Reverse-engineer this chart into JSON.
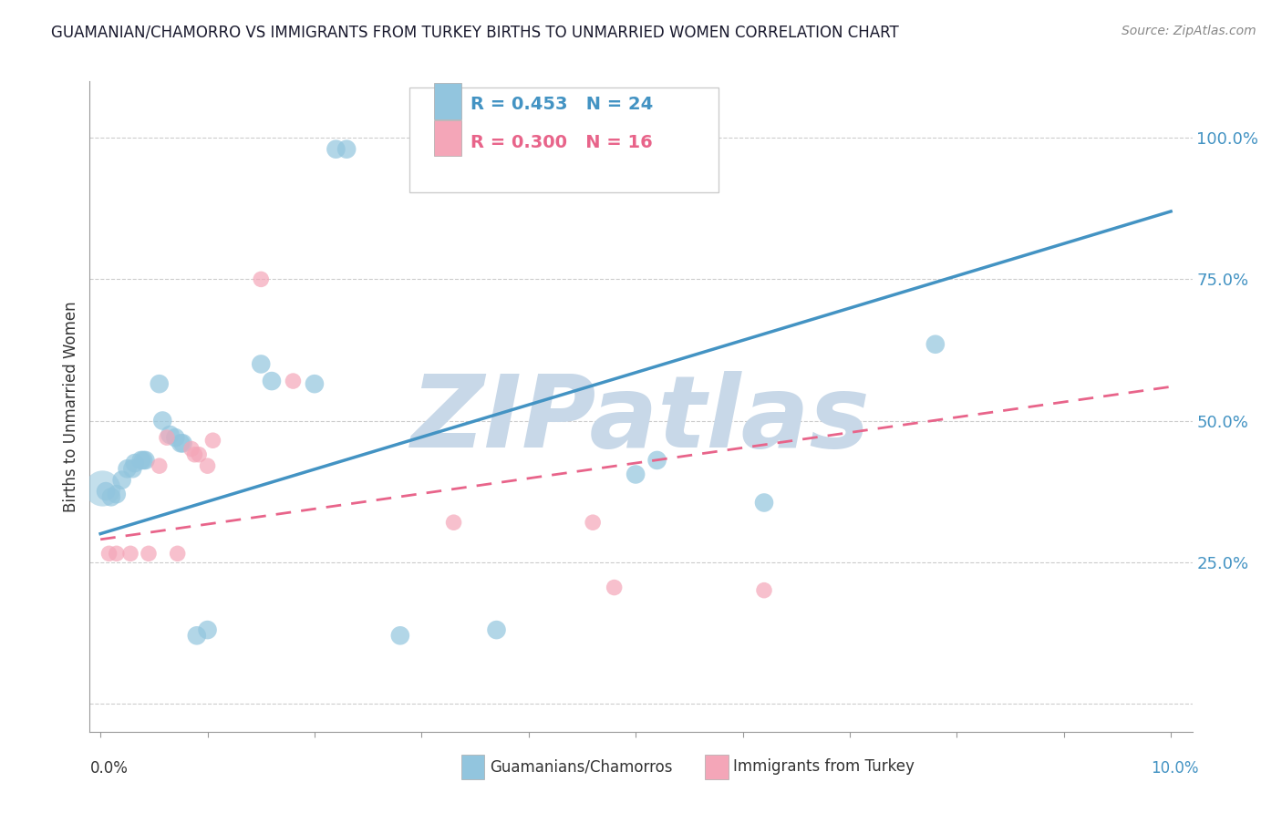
{
  "title": "GUAMANIAN/CHAMORRO VS IMMIGRANTS FROM TURKEY BIRTHS TO UNMARRIED WOMEN CORRELATION CHART",
  "source": "Source: ZipAtlas.com",
  "ylabel": "Births to Unmarried Women",
  "legend_label1": "Guamanians/Chamorros",
  "legend_label2": "Immigrants from Turkey",
  "R1": 0.453,
  "N1": 24,
  "R2": 0.3,
  "N2": 16,
  "blue_color": "#92c5de",
  "pink_color": "#f4a6b8",
  "blue_line_color": "#4393c3",
  "pink_line_color": "#e8648a",
  "watermark_text": "ZIPatlas",
  "watermark_color": "#c8d8e8",
  "blue_dots_xy": [
    [
      0.005,
      0.375
    ],
    [
      0.01,
      0.365
    ],
    [
      0.015,
      0.37
    ],
    [
      0.02,
      0.395
    ],
    [
      0.025,
      0.415
    ],
    [
      0.03,
      0.415
    ],
    [
      0.032,
      0.425
    ],
    [
      0.038,
      0.43
    ],
    [
      0.04,
      0.43
    ],
    [
      0.042,
      0.43
    ],
    [
      0.055,
      0.565
    ],
    [
      0.058,
      0.5
    ],
    [
      0.065,
      0.475
    ],
    [
      0.07,
      0.47
    ],
    [
      0.075,
      0.46
    ],
    [
      0.077,
      0.46
    ],
    [
      0.09,
      0.12
    ],
    [
      0.1,
      0.13
    ],
    [
      0.15,
      0.6
    ],
    [
      0.16,
      0.57
    ],
    [
      0.2,
      0.565
    ],
    [
      0.22,
      0.98
    ],
    [
      0.23,
      0.98
    ],
    [
      0.5,
      0.405
    ],
    [
      0.52,
      0.43
    ],
    [
      0.62,
      0.355
    ],
    [
      0.78,
      0.635
    ],
    [
      0.28,
      0.12
    ],
    [
      0.37,
      0.13
    ]
  ],
  "pink_dots_xy": [
    [
      0.008,
      0.265
    ],
    [
      0.015,
      0.265
    ],
    [
      0.028,
      0.265
    ],
    [
      0.045,
      0.265
    ],
    [
      0.055,
      0.42
    ],
    [
      0.062,
      0.47
    ],
    [
      0.072,
      0.265
    ],
    [
      0.085,
      0.45
    ],
    [
      0.088,
      0.44
    ],
    [
      0.092,
      0.44
    ],
    [
      0.1,
      0.42
    ],
    [
      0.105,
      0.465
    ],
    [
      0.15,
      0.75
    ],
    [
      0.18,
      0.57
    ],
    [
      0.33,
      0.32
    ],
    [
      0.46,
      0.32
    ],
    [
      0.48,
      0.205
    ],
    [
      0.62,
      0.2
    ]
  ],
  "large_blue_dot": [
    0.002,
    0.38
  ],
  "xlim": [
    0.0,
    1.0
  ],
  "ylim": [
    -0.02,
    1.1
  ],
  "y_ticks": [
    0.0,
    0.25,
    0.5,
    0.75,
    1.0
  ],
  "y_tick_labels": [
    "",
    "25.0%",
    "50.0%",
    "75.0%",
    "100.0%"
  ],
  "x_tick_positions": [
    0.0,
    0.1,
    0.2,
    0.3,
    0.4,
    0.5,
    0.6,
    0.7,
    0.8,
    0.9,
    1.0
  ],
  "background_color": "#ffffff",
  "grid_color": "#cccccc",
  "spine_color": "#999999"
}
